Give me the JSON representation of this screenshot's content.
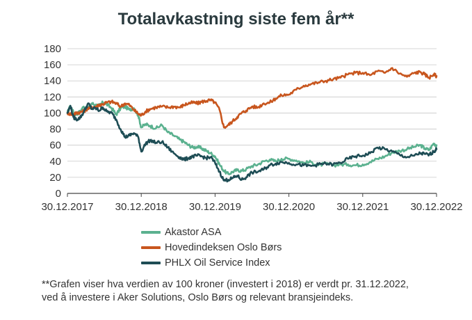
{
  "title": "Totalavkastning siste fem år**",
  "footnote_line1": "**Grafen viser hva verdien av 100 kroner (investert i 2018) er verdt pr. 31.12.2022,",
  "footnote_line2": "ved å investere i Aker Solutions, Oslo Børs og relevant bransjeindeks.",
  "chart_data": {
    "type": "line",
    "title": "Totalavkastning siste fem år**",
    "ylim": [
      0,
      180
    ],
    "yticks": [
      0,
      20,
      40,
      60,
      80,
      100,
      120,
      140,
      160,
      180
    ],
    "xlim": [
      2018.0,
      2023.0
    ],
    "xtick_positions": [
      2018,
      2019,
      2020,
      2021,
      2022,
      2023
    ],
    "xtick_labels": [
      "30.12.2017",
      "30.12.2018",
      "30.12.2019",
      "30.12.2020",
      "30.12.2021",
      "30.12.2022"
    ],
    "grid": "horizontal",
    "legend_position": "bottom",
    "series": [
      {
        "name": "Akastor ASA",
        "color": "#5bb18f",
        "x": [
          2018.0,
          2018.04,
          2018.08,
          2018.12,
          2018.17,
          2018.22,
          2018.28,
          2018.33,
          2018.38,
          2018.43,
          2018.48,
          2018.53,
          2018.6,
          2018.66,
          2018.72,
          2018.78,
          2018.84,
          2018.9,
          2018.96,
          2019.0,
          2019.06,
          2019.12,
          2019.2,
          2019.28,
          2019.36,
          2019.44,
          2019.52,
          2019.58,
          2019.64,
          2019.7,
          2019.76,
          2019.82,
          2019.88,
          2019.94,
          2020.0,
          2020.06,
          2020.12,
          2020.18,
          2020.24,
          2020.3,
          2020.36,
          2020.42,
          2020.5,
          2020.58,
          2020.66,
          2020.74,
          2020.82,
          2020.9,
          2021.0,
          2021.1,
          2021.2,
          2021.3,
          2021.4,
          2021.5,
          2021.6,
          2021.7,
          2021.8,
          2021.9,
          2022.0,
          2022.1,
          2022.2,
          2022.3,
          2022.4,
          2022.5,
          2022.6,
          2022.7,
          2022.78,
          2022.84,
          2022.9,
          2022.96,
          2023.0
        ],
        "y": [
          100,
          109,
          101,
          98,
          102,
          108,
          106,
          112,
          110,
          109,
          113,
          111,
          106,
          98,
          106,
          108,
          104,
          106,
          97,
          82,
          86,
          84,
          81,
          85,
          76,
          72,
          67,
          64,
          60,
          57,
          58,
          56,
          53,
          50,
          46,
          36,
          28,
          24,
          27,
          29,
          28,
          30,
          34,
          36,
          40,
          42,
          40,
          43,
          43,
          41,
          38,
          39,
          35,
          37,
          35,
          36,
          36,
          35,
          36,
          39,
          43,
          46,
          51,
          53,
          55,
          58,
          60,
          56,
          54,
          62,
          60
        ]
      },
      {
        "name": "Hovedindeksen Oslo Børs",
        "color": "#c8561e",
        "x": [
          2018.0,
          2018.04,
          2018.08,
          2018.12,
          2018.17,
          2018.22,
          2018.28,
          2018.33,
          2018.38,
          2018.43,
          2018.48,
          2018.53,
          2018.6,
          2018.66,
          2018.72,
          2018.78,
          2018.84,
          2018.9,
          2018.96,
          2019.0,
          2019.06,
          2019.12,
          2019.2,
          2019.28,
          2019.36,
          2019.44,
          2019.52,
          2019.58,
          2019.64,
          2019.7,
          2019.76,
          2019.82,
          2019.88,
          2019.94,
          2020.0,
          2020.06,
          2020.12,
          2020.18,
          2020.24,
          2020.3,
          2020.36,
          2020.42,
          2020.5,
          2020.58,
          2020.66,
          2020.74,
          2020.82,
          2020.9,
          2021.0,
          2021.1,
          2021.2,
          2021.3,
          2021.4,
          2021.5,
          2021.6,
          2021.7,
          2021.8,
          2021.9,
          2022.0,
          2022.1,
          2022.2,
          2022.3,
          2022.4,
          2022.5,
          2022.6,
          2022.7,
          2022.78,
          2022.84,
          2022.9,
          2022.96,
          2023.0
        ],
        "y": [
          100,
          99,
          98,
          100,
          101,
          102,
          106,
          107,
          108,
          110,
          111,
          113,
          114,
          112,
          108,
          112,
          110,
          104,
          99,
          97,
          102,
          105,
          107,
          108,
          107,
          108,
          107,
          110,
          112,
          113,
          112,
          114,
          115,
          116,
          113,
          104,
          82,
          85,
          90,
          95,
          100,
          103,
          108,
          107,
          112,
          113,
          118,
          122,
          123,
          129,
          134,
          136,
          138,
          140,
          142,
          144,
          148,
          150,
          150,
          147,
          152,
          150,
          156,
          149,
          145,
          150,
          151,
          148,
          144,
          148,
          146
        ]
      },
      {
        "name": "PHLX Oil Service Index",
        "color": "#1e4d55",
        "x": [
          2018.0,
          2018.04,
          2018.08,
          2018.12,
          2018.17,
          2018.22,
          2018.28,
          2018.33,
          2018.38,
          2018.43,
          2018.48,
          2018.53,
          2018.6,
          2018.66,
          2018.72,
          2018.78,
          2018.84,
          2018.9,
          2018.96,
          2019.0,
          2019.06,
          2019.12,
          2019.2,
          2019.28,
          2019.36,
          2019.44,
          2019.52,
          2019.58,
          2019.64,
          2019.7,
          2019.76,
          2019.82,
          2019.88,
          2019.94,
          2020.0,
          2020.06,
          2020.12,
          2020.18,
          2020.24,
          2020.3,
          2020.36,
          2020.42,
          2020.5,
          2020.58,
          2020.66,
          2020.74,
          2020.82,
          2020.9,
          2021.0,
          2021.1,
          2021.2,
          2021.3,
          2021.4,
          2021.5,
          2021.6,
          2021.7,
          2021.8,
          2021.9,
          2022.0,
          2022.1,
          2022.2,
          2022.3,
          2022.4,
          2022.5,
          2022.6,
          2022.7,
          2022.78,
          2022.84,
          2022.9,
          2022.96,
          2023.0
        ],
        "y": [
          100,
          109,
          95,
          92,
          94,
          101,
          112,
          105,
          106,
          103,
          107,
          102,
          100,
          92,
          80,
          70,
          72,
          75,
          70,
          52,
          62,
          66,
          63,
          64,
          57,
          50,
          45,
          42,
          44,
          46,
          47,
          46,
          44,
          45,
          38,
          27,
          16,
          17,
          19,
          22,
          17,
          20,
          26,
          27,
          30,
          35,
          37,
          39,
          38,
          36,
          35,
          34,
          36,
          37,
          36,
          38,
          43,
          46,
          47,
          50,
          57,
          55,
          52,
          48,
          45,
          47,
          50,
          49,
          48,
          52,
          55
        ]
      }
    ]
  }
}
